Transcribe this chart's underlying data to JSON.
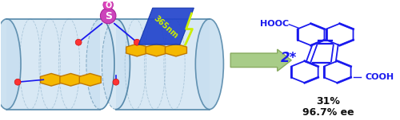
{
  "fig_width": 5.0,
  "fig_height": 1.51,
  "dpi": 100,
  "bg_color": "#ffffff",
  "tube_color": "#c8dff0",
  "tube_edge": "#5588aa",
  "hex_fc": "#f5b800",
  "hex_ec": "#c07800",
  "mol_color": "#1a1aee",
  "arrow_color": "#a8cc88",
  "arrow_edge": "#88aa60",
  "label_2star": "2*",
  "label_2star_color": "#1a1aee",
  "label_31": "31%",
  "label_ee": "96.7% ee",
  "hooc_text": "HOOC",
  "cooh_text": "COOH",
  "nm_label": "365nm",
  "s_color": "#cc44bb",
  "o_color": "#dd44bb",
  "dot_color": "#ff4444",
  "blue_banner": "#1133cc",
  "yellow_text": "#ccee00"
}
